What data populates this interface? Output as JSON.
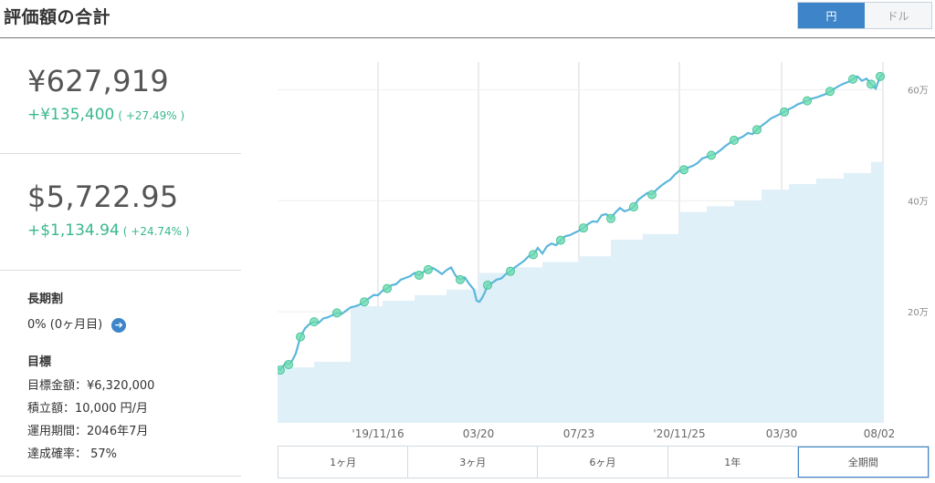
{
  "header": {
    "title": "評価額の合計",
    "currency_toggle": [
      {
        "label": "円",
        "active": true
      },
      {
        "label": "ドル",
        "active": false
      }
    ]
  },
  "summary_jpy": {
    "value": "¥627,919",
    "gain": "+¥135,400",
    "gain_pct": "( +27.49% )"
  },
  "summary_usd": {
    "value": "$5,722.95",
    "gain": "+$1,134.94",
    "gain_pct": "( +24.74% )"
  },
  "long_term": {
    "heading": "長期割",
    "value": "0% (0ヶ月目)"
  },
  "goal": {
    "heading": "目標",
    "amount": "目標金額：¥6,320,000",
    "monthly": "積立額：10,000 円/月",
    "period": "運用期間：2046年7月",
    "probability": "達成確率：  57%"
  },
  "range_tabs": [
    {
      "label": "1ヶ月",
      "active": false
    },
    {
      "label": "3ヶ月",
      "active": false
    },
    {
      "label": "6ヶ月",
      "active": false
    },
    {
      "label": "1年",
      "active": false
    },
    {
      "label": "全期間",
      "active": true
    }
  ],
  "colors": {
    "accent_blue": "#3d84c8",
    "gain_green": "#38b88f",
    "line": "#5bb7db",
    "area": "#dff0f9",
    "marker": "#6fdcb0"
  },
  "chart_data": {
    "type": "line",
    "xlabel": "",
    "ylabel": "",
    "x_ticks": [
      "'19/11/16",
      "03/20",
      "07/23",
      "'20/11/25",
      "03/30",
      "08/02"
    ],
    "y_ticks": [
      "20万",
      "40万",
      "60万"
    ],
    "ylim": [
      0,
      65
    ],
    "y_unit": "万",
    "grid": true,
    "series": [
      {
        "x": [
          0,
          3,
          6,
          9,
          12,
          16,
          20,
          25,
          30,
          35,
          40,
          45,
          50,
          55,
          60,
          65,
          70,
          75,
          80,
          85,
          90,
          95,
          100,
          105,
          110,
          115,
          120,
          125,
          130,
          135,
          140,
          145,
          150,
          155,
          160,
          165,
          170,
          175,
          180,
          185,
          190,
          195,
          200,
          205,
          210,
          215,
          218,
          221,
          224,
          227,
          230,
          235,
          240,
          245,
          250,
          255,
          260,
          265,
          270,
          275,
          280,
          285,
          290,
          295,
          300,
          305,
          310,
          315,
          320,
          325,
          330,
          335,
          340,
          345,
          350,
          355,
          360,
          365,
          370,
          375,
          380,
          385,
          390,
          395,
          400,
          405,
          410,
          415,
          420,
          425,
          430,
          435,
          440,
          445,
          450,
          455,
          460,
          465,
          470,
          475,
          480,
          485,
          490,
          495,
          500,
          505,
          510,
          515,
          520,
          525,
          530,
          535,
          540,
          545,
          550,
          555,
          560,
          565,
          570,
          575,
          580,
          585,
          590,
          595,
          600,
          605,
          610,
          615,
          620,
          625,
          630,
          635,
          640,
          645,
          650,
          655,
          660,
          663
        ],
        "values": [
          9.8,
          9.5,
          10.2,
          10.8,
          10.5,
          11.2,
          12.5,
          15.5,
          17.0,
          17.8,
          18.2,
          18.0,
          18.8,
          19.0,
          19.4,
          19.8,
          19.6,
          20.2,
          20.8,
          21.0,
          21.3,
          21.8,
          22.4,
          23.0,
          23.0,
          23.8,
          24.2,
          24.8,
          25.0,
          25.8,
          26.1,
          26.4,
          27.0,
          26.6,
          27.2,
          27.6,
          27.9,
          27.4,
          26.8,
          27.5,
          28.0,
          26.5,
          25.8,
          26.2,
          25.0,
          24.0,
          22.0,
          21.8,
          22.5,
          23.5,
          24.8,
          25.2,
          25.8,
          26.0,
          26.8,
          27.3,
          28.0,
          28.6,
          29.2,
          30.0,
          30.3,
          31.5,
          30.5,
          31.8,
          32.3,
          32.0,
          32.9,
          33.6,
          33.8,
          34.2,
          34.6,
          35.1,
          35.8,
          36.3,
          36.2,
          37.4,
          37.6,
          36.8,
          37.9,
          38.7,
          38.1,
          38.4,
          38.9,
          40.2,
          40.8,
          41.4,
          41.1,
          42.0,
          42.7,
          43.3,
          43.8,
          44.7,
          45.4,
          45.6,
          46.0,
          46.3,
          46.8,
          47.6,
          47.9,
          48.2,
          48.5,
          49.1,
          49.8,
          50.4,
          50.9,
          51.2,
          51.6,
          52.2,
          52.0,
          52.8,
          53.5,
          54.1,
          54.8,
          55.2,
          55.6,
          56.0,
          56.5,
          56.9,
          57.4,
          57.7,
          58.0,
          58.4,
          58.6,
          58.9,
          59.2,
          59.7,
          60.2,
          60.7,
          61.1,
          61.4,
          61.9,
          62.4,
          61.6,
          62.0,
          61.0,
          60.2,
          62.4,
          62.8
        ]
      },
      {
        "x": [
          0,
          40,
          80,
          115,
          150,
          185,
          220,
          255,
          290,
          330,
          365,
          400,
          440,
          470,
          500,
          530,
          560,
          590,
          620,
          650,
          663
        ],
        "values": [
          10,
          11,
          21,
          22,
          23,
          24,
          27,
          28,
          29,
          30,
          33,
          34,
          38,
          39,
          40,
          42,
          43,
          44,
          45,
          47,
          48
        ]
      }
    ],
    "markers_x": [
      3,
      12,
      25,
      40,
      65,
      95,
      120,
      155,
      165,
      200,
      230,
      255,
      280,
      310,
      335,
      365,
      390,
      410,
      445,
      475,
      500,
      525,
      555,
      580,
      605,
      630,
      650,
      660
    ]
  }
}
